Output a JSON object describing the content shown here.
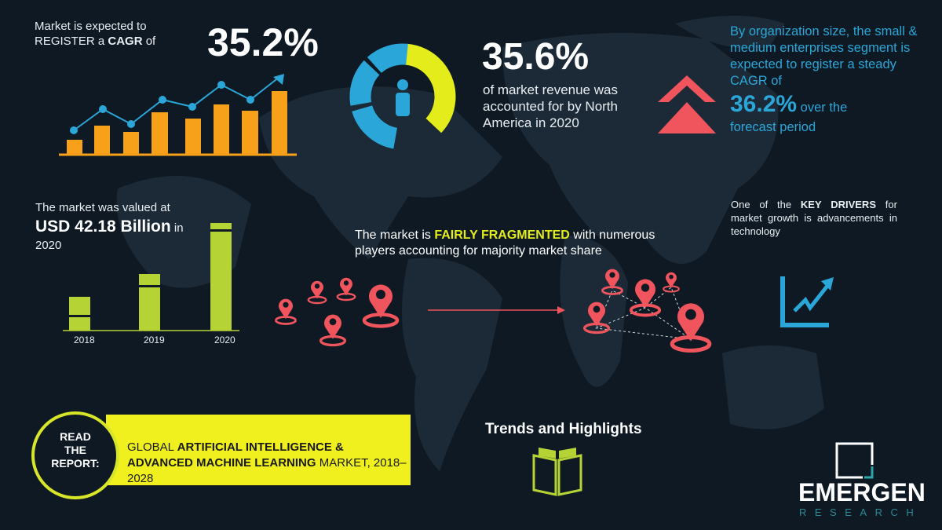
{
  "cagr": {
    "line1": "Market is expected to",
    "line2_prefix": "REGISTER a ",
    "line2_bold": "CAGR",
    "line2_suffix": " of",
    "value": "35.2%"
  },
  "north_america": {
    "value": "35.6%",
    "text": "of market revenue was accounted for by North America in 2020",
    "share_percent": 35.6
  },
  "org_size": {
    "text1": "By organization size, the small & medium enterprises segment is expected to register a steady CAGR of",
    "value": "36.2%",
    "text2": " over the",
    "text3": "forecast period"
  },
  "valuation": {
    "line1": "The market was valued at",
    "value": "USD 42.18 Billion",
    "suffix": " in",
    "year": "2020",
    "years": [
      "2018",
      "2019",
      "2020"
    ]
  },
  "fragmented": {
    "prefix": "The market is ",
    "highlight": "FAIRLY FRAGMENTED",
    "suffix": " with numerous players accounting for majority market share"
  },
  "drivers": {
    "prefix": "One of the ",
    "bold": "KEY DRIVERS",
    "suffix": " for market growth is advancements in technology"
  },
  "report": {
    "circle": [
      "READ",
      "THE",
      "REPORT:"
    ],
    "title_a": "GLOBAL ",
    "title_b": "ARTIFICIAL INTELLIGENCE & ADVANCED MACHINE LEARNING",
    "title_c": " MARKET, 2018–2028"
  },
  "trends": {
    "label": "Trends and Highlights"
  },
  "logo": {
    "name": "EMERGEN",
    "sub": "RESEARCH"
  },
  "colors": {
    "background": "#0e1923",
    "orange": "#f7a11a",
    "blue": "#2aa7d8",
    "yellow": "#e4ec1c",
    "green": "#b5d334",
    "red": "#f0545d"
  }
}
